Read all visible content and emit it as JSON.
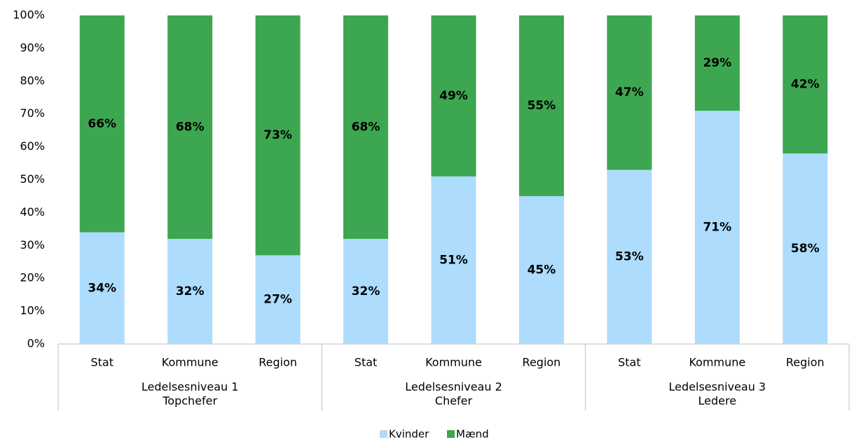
{
  "chart_data": {
    "type": "stacked_bar",
    "categories": [
      "Stat",
      "Kommune",
      "Region",
      "Stat",
      "Kommune",
      "Region",
      "Stat",
      "Kommune",
      "Region"
    ],
    "groups": [
      [
        "Ledelsesniveau 1",
        "Topchefer"
      ],
      [
        "Ledelsesniveau 2",
        "Chefer"
      ],
      [
        "Ledelsesniveau 3",
        "Ledere"
      ]
    ],
    "series": [
      {
        "name": "Kvinder",
        "color": "#addcfc",
        "values": [
          34,
          32,
          27,
          32,
          51,
          45,
          53,
          71,
          58
        ],
        "value_labels": [
          "34%",
          "32%",
          "27%",
          "32%",
          "51%",
          "45%",
          "53%",
          "71%",
          "58%"
        ]
      },
      {
        "name": "Mænd",
        "color": "#3da650",
        "values": [
          66,
          68,
          73,
          68,
          49,
          55,
          47,
          29,
          42
        ],
        "value_labels": [
          "66%",
          "68%",
          "73%",
          "68%",
          "49%",
          "55%",
          "47%",
          "29%",
          "42%"
        ]
      }
    ],
    "ylim": [
      0,
      100
    ],
    "yticks": [
      {
        "value": 0,
        "label": "0%"
      },
      {
        "value": 10,
        "label": "10%"
      },
      {
        "value": 20,
        "label": "20%"
      },
      {
        "value": 30,
        "label": "30%"
      },
      {
        "value": 40,
        "label": "40%"
      },
      {
        "value": 50,
        "label": "50%"
      },
      {
        "value": 60,
        "label": "60%"
      },
      {
        "value": 70,
        "label": "70%"
      },
      {
        "value": 80,
        "label": "80%"
      },
      {
        "value": 90,
        "label": "90%"
      },
      {
        "value": 100,
        "label": "100%"
      }
    ],
    "legend": "bottom"
  }
}
